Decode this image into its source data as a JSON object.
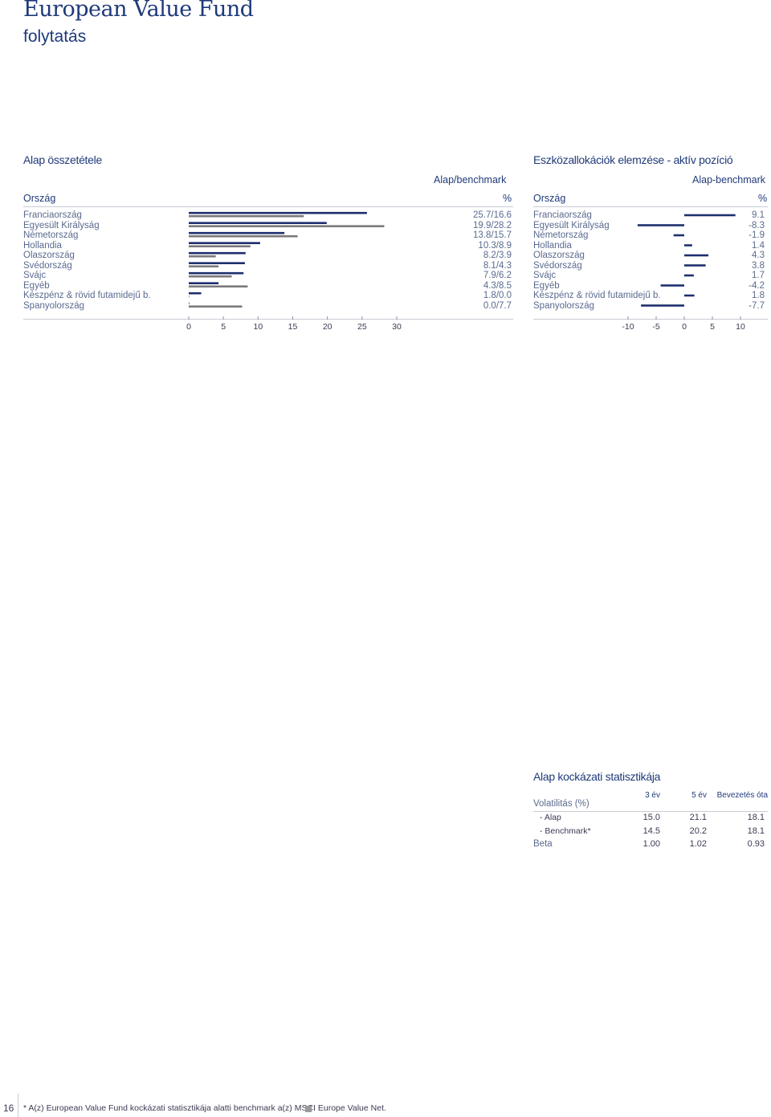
{
  "header": {
    "title": "European Value Fund",
    "subtitle": "folytatás"
  },
  "composition": {
    "section_title": "Alap összetétele",
    "col_header_top": "Alap/benchmark",
    "col_header_country": "Ország",
    "col_header_unit": "%",
    "rows": [
      {
        "label": "Franciaország",
        "value_text": "25.7/16.6"
      },
      {
        "label": "Egyesült Királyság",
        "value_text": "19.9/28.2"
      },
      {
        "label": "Németország",
        "value_text": "13.8/15.7"
      },
      {
        "label": "Hollandia",
        "value_text": "10.3/8.9"
      },
      {
        "label": "Olaszország",
        "value_text": "8.2/3.9"
      },
      {
        "label": "Svédország",
        "value_text": "8.1/4.3"
      },
      {
        "label": "Svájc",
        "value_text": "7.9/6.2"
      },
      {
        "label": "Egyéb",
        "value_text": "4.3/8.5"
      },
      {
        "label": "Készpénz & rövid futamidejű b.",
        "value_text": "1.8/0.0"
      },
      {
        "label": "Spanyolország",
        "value_text": "0.0/7.7"
      }
    ]
  },
  "active": {
    "section_title": "Eszközallokációk elemzése - aktív pozíció",
    "col_header_top": "Alap-benchmark",
    "col_header_country": "Ország",
    "col_header_unit": "%",
    "rows": [
      {
        "label": "Franciaország",
        "value_text": "9.1"
      },
      {
        "label": "Egyesült Királyság",
        "value_text": "-8.3"
      },
      {
        "label": "Németország",
        "value_text": "-1.9"
      },
      {
        "label": "Hollandia",
        "value_text": "1.4"
      },
      {
        "label": "Olaszország",
        "value_text": "4.3"
      },
      {
        "label": "Svédország",
        "value_text": "3.8"
      },
      {
        "label": "Svájc",
        "value_text": "1.7"
      },
      {
        "label": "Egyéb",
        "value_text": "-4.2"
      },
      {
        "label": "Készpénz & rövid futamidejű b.",
        "value_text": "1.8"
      },
      {
        "label": "Spanyolország",
        "value_text": "-7.7"
      }
    ]
  },
  "chart_data": [
    {
      "type": "bar",
      "orientation": "horizontal",
      "categories": [
        "Franciaország",
        "Egyesült Királyság",
        "Németország",
        "Hollandia",
        "Olaszország",
        "Svédország",
        "Svájc",
        "Egyéb",
        "Készpénz & rövid futamidejű b.",
        "Spanyolország"
      ],
      "series": [
        {
          "values": [
            25.7,
            19.9,
            13.8,
            10.3,
            8.2,
            8.1,
            7.9,
            4.3,
            1.8,
            0.0
          ],
          "color": "#1e2f6e"
        },
        {
          "values": [
            16.6,
            28.2,
            15.7,
            8.9,
            3.9,
            4.3,
            6.2,
            8.5,
            0.0,
            7.7
          ],
          "color": "#7a7a7a"
        }
      ],
      "xlim": [
        0,
        30
      ],
      "x_ticks": [
        "0",
        "5",
        "10",
        "15",
        "20",
        "25",
        "30"
      ]
    },
    {
      "type": "bar",
      "orientation": "horizontal",
      "categories": [
        "Franciaország",
        "Egyesült Királyság",
        "Németország",
        "Hollandia",
        "Olaszország",
        "Svédország",
        "Svájc",
        "Egyéb",
        "Készpénz & rövid futamidejű b.",
        "Spanyolország"
      ],
      "series": [
        {
          "values": [
            9.1,
            -8.3,
            -1.9,
            1.4,
            4.3,
            3.8,
            1.7,
            -4.2,
            1.8,
            -7.7
          ],
          "color": "#1e2f6e"
        }
      ],
      "xlim": [
        -10,
        10
      ],
      "x_ticks": [
        "-10",
        "-5",
        "0",
        "5",
        "10"
      ]
    }
  ],
  "risk": {
    "section_title": "Alap kockázati statisztikája",
    "headers": [
      "3 év",
      "5 év",
      "Bevezetés óta"
    ],
    "volatility_label": "Volatilitás (%)",
    "rows": [
      {
        "label": "- Alap",
        "values": [
          "15.0",
          "21.1",
          "18.1"
        ]
      },
      {
        "label": "- Benchmark*",
        "values": [
          "14.5",
          "20.2",
          "18.1"
        ]
      },
      {
        "label": "Beta",
        "values": [
          "1.00",
          "1.02",
          "0.93"
        ]
      }
    ]
  },
  "footer": {
    "page_number": "16",
    "note": "* A(z) European Value Fund   kockázati statisztikája alatti benchmark a(z)  MSCI Europe Value Net."
  }
}
